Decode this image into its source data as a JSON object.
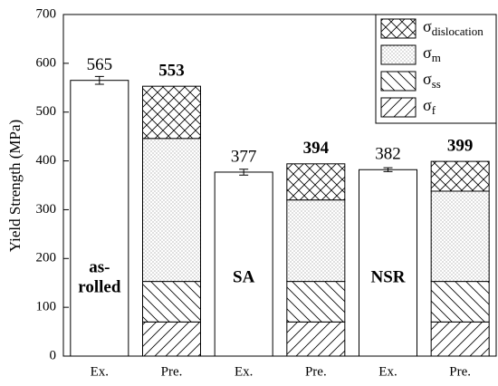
{
  "chart_data": {
    "type": "stacked_bar",
    "y_label": "Yield Strength (MPa)",
    "categories": [
      "Ex.",
      "Pre.",
      "Ex.",
      "Pre.",
      "Ex.",
      "Pre."
    ],
    "ylim": [
      0,
      700
    ],
    "yticks": [
      0,
      100,
      200,
      300,
      400,
      500,
      600,
      700
    ],
    "groups": [
      [
        "as-",
        "rolled"
      ],
      [
        "SA"
      ],
      [
        "NSR"
      ]
    ],
    "experimental": {
      "values": [
        565,
        null,
        377,
        null,
        382,
        null
      ],
      "errors": [
        8,
        null,
        6,
        null,
        4,
        null
      ],
      "color": "#ffffff"
    },
    "predicted_totals": [
      null,
      553,
      null,
      394,
      null,
      399
    ],
    "series": [
      {
        "name": "σ",
        "subscript": "f",
        "hatch": "/",
        "color": "#000000",
        "values": [
          null,
          70,
          null,
          70,
          null,
          70
        ]
      },
      {
        "name": "σ",
        "subscript": "ss",
        "hatch": "\\",
        "color": "#000000",
        "values": [
          null,
          83,
          null,
          83,
          null,
          83
        ]
      },
      {
        "name": "σ",
        "subscript": "m",
        "hatch": ".",
        "color": "#000000",
        "values": [
          null,
          293,
          null,
          167,
          null,
          185
        ]
      },
      {
        "name": "σ",
        "subscript": "dislocation",
        "hatch": "x",
        "color": "#000000",
        "values": [
          null,
          107,
          null,
          74,
          null,
          61
        ]
      }
    ],
    "legend": "upper right"
  }
}
